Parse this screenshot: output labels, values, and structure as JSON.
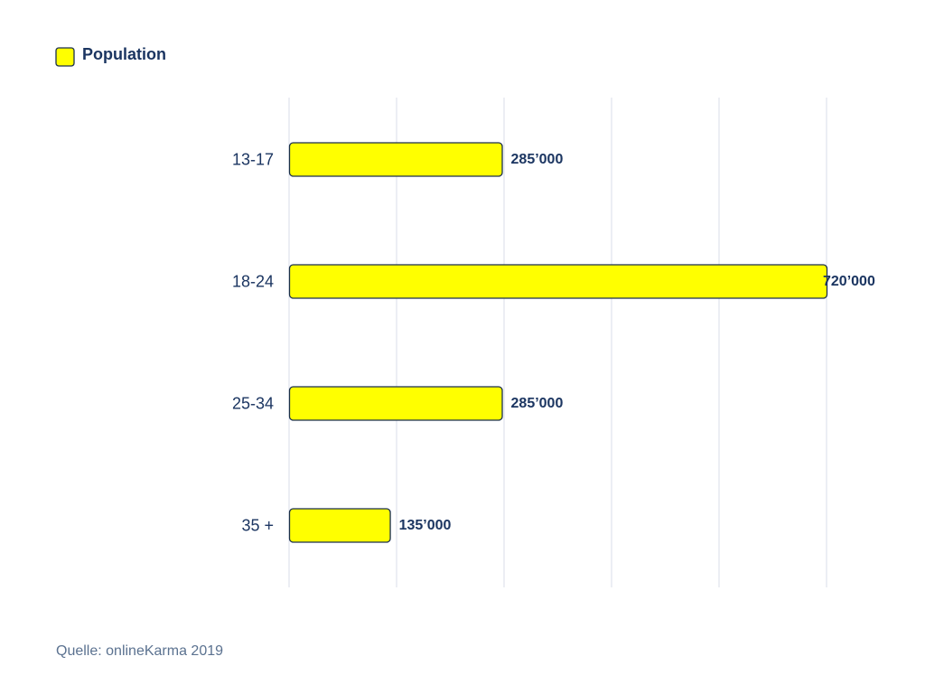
{
  "chart_data": {
    "type": "bar",
    "orientation": "horizontal",
    "categories": [
      "13-17",
      "18-24",
      "25-34",
      "35 +"
    ],
    "series": [
      {
        "name": "Population",
        "values": [
          285000,
          720000,
          285000,
          135000
        ],
        "labels": [
          "285’000",
          "720’000",
          "285’000",
          "135’000"
        ]
      }
    ],
    "xlim": [
      0,
      720000
    ],
    "grid": true,
    "legend_position": "top-left"
  },
  "source": "Quelle: onlineKarma 2019",
  "colors": {
    "bar_fill": "#ffff00",
    "bar_stroke": "#1b2f4f",
    "text": "#1b3561",
    "grid": "#d8dee8",
    "source_text": "#5b7290"
  }
}
